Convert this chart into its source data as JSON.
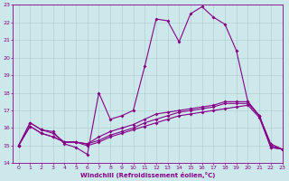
{
  "xlabel": "Windchill (Refroidissement éolien,°C)",
  "xlim": [
    -0.5,
    23
  ],
  "ylim": [
    14,
    23
  ],
  "yticks": [
    14,
    15,
    16,
    17,
    18,
    19,
    20,
    21,
    22,
    23
  ],
  "xticks": [
    0,
    1,
    2,
    3,
    4,
    5,
    6,
    7,
    8,
    9,
    10,
    11,
    12,
    13,
    14,
    15,
    16,
    17,
    18,
    19,
    20,
    21,
    22,
    23
  ],
  "background_color": "#cce8ea",
  "grid_color": "#aacccc",
  "line_color": "#880088",
  "markersize": 2.0,
  "linewidth": 0.8,
  "line_series": [
    [
      15.0,
      16.3,
      15.9,
      15.8,
      15.1,
      14.9,
      14.5,
      18.0,
      16.5,
      16.7,
      17.0,
      19.5,
      22.2,
      22.1,
      20.9,
      22.5,
      22.9,
      22.3,
      21.9,
      20.4,
      17.5,
      16.7,
      14.9,
      14.8
    ],
    [
      15.0,
      16.3,
      15.9,
      15.7,
      15.2,
      15.2,
      15.1,
      15.5,
      15.8,
      16.0,
      16.2,
      16.5,
      16.8,
      16.9,
      17.0,
      17.1,
      17.2,
      17.3,
      17.5,
      17.5,
      17.5,
      16.7,
      15.1,
      14.8
    ],
    [
      15.0,
      16.1,
      15.7,
      15.5,
      15.2,
      15.2,
      15.1,
      15.3,
      15.6,
      15.8,
      16.0,
      16.3,
      16.5,
      16.7,
      16.9,
      17.0,
      17.1,
      17.2,
      17.4,
      17.4,
      17.4,
      16.7,
      15.0,
      14.8
    ],
    [
      15.0,
      16.1,
      15.7,
      15.5,
      15.2,
      15.2,
      15.0,
      15.2,
      15.5,
      15.7,
      15.9,
      16.1,
      16.3,
      16.5,
      16.7,
      16.8,
      16.9,
      17.0,
      17.1,
      17.2,
      17.3,
      16.6,
      14.9,
      14.8
    ]
  ]
}
